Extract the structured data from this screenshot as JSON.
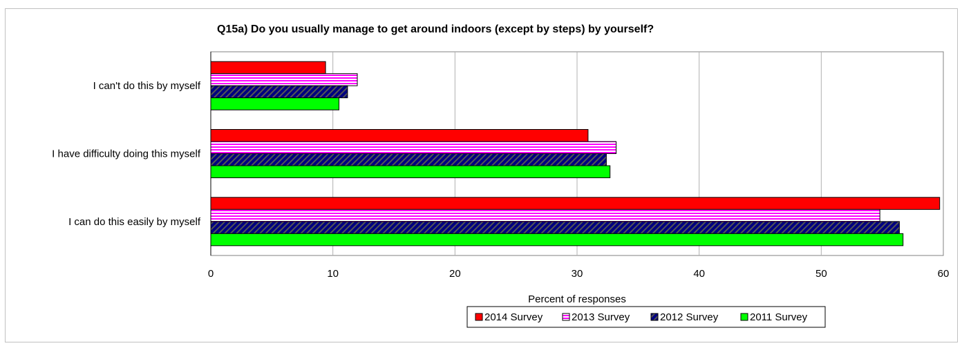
{
  "chart_data": {
    "type": "bar",
    "orientation": "horizontal",
    "title": "Q15a)  Do you usually manage to get around indoors (except by steps) by yourself?",
    "xlabel": "Percent of responses",
    "ylabel": "",
    "xlim": [
      0,
      60
    ],
    "xticks": [
      "0",
      "10",
      "20",
      "30",
      "40",
      "50",
      "60"
    ],
    "grid": "vertical",
    "legend_position": "bottom-center",
    "categories": [
      "I can't do this by myself",
      "I have difficulty doing this myself",
      "I can do this easily by myself"
    ],
    "series": [
      {
        "name": "2014 Survey",
        "values": [
          9.4,
          30.9,
          59.7
        ],
        "color": "#ff0000",
        "pattern": "solid"
      },
      {
        "name": "2013 Survey",
        "values": [
          12.0,
          33.2,
          54.8
        ],
        "color": "#ff00ff",
        "pattern": "horizontal-stripes"
      },
      {
        "name": "2012 Survey",
        "values": [
          11.2,
          32.4,
          56.4
        ],
        "color": "#000080",
        "pattern": "diagonal-stripes"
      },
      {
        "name": "2011 Survey",
        "values": [
          10.5,
          32.7,
          56.7
        ],
        "color": "#00ff00",
        "pattern": "solid"
      }
    ]
  }
}
